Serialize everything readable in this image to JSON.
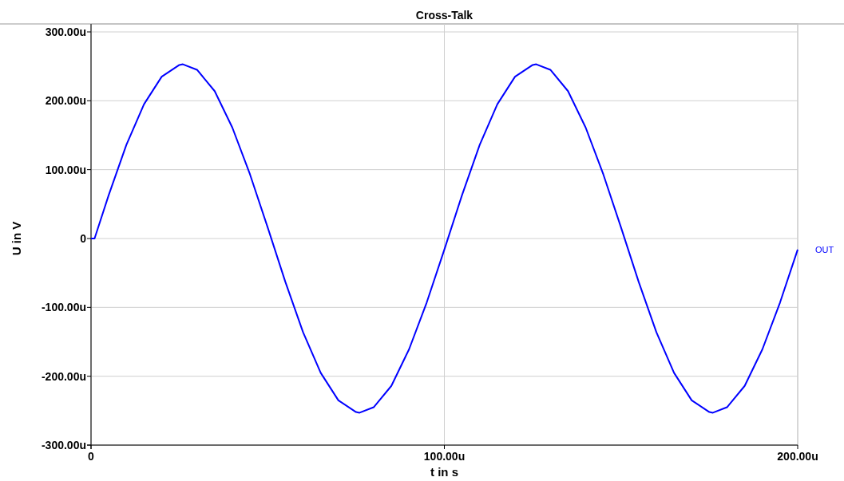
{
  "chart_data": {
    "type": "line",
    "title": "Cross-Talk",
    "xlabel": "t in s",
    "ylabel": "U in V",
    "x": [
      0,
      1,
      5,
      10,
      15,
      20,
      25,
      26,
      30,
      35,
      40,
      45,
      50,
      55,
      60,
      65,
      70,
      75,
      76,
      80,
      85,
      90,
      95,
      100,
      105,
      110,
      115,
      120,
      125,
      126,
      130,
      135,
      140,
      145,
      150,
      155,
      160,
      165,
      170,
      175,
      176,
      180,
      185,
      190,
      195,
      200
    ],
    "series": [
      {
        "name": "OUT",
        "color": "#0000ff",
        "values": [
          0,
          0,
          63,
          136,
          195,
          235,
          252,
          253,
          245,
          214,
          161,
          93,
          16,
          -63,
          -136,
          -195,
          -235,
          -252,
          -253,
          -245,
          -214,
          -161,
          -93,
          -16,
          63,
          136,
          195,
          235,
          252,
          253,
          245,
          214,
          161,
          93,
          16,
          -63,
          -136,
          -195,
          -235,
          -252,
          -253,
          -245,
          -214,
          -161,
          -93,
          -16
        ]
      }
    ],
    "xlim": [
      0,
      200
    ],
    "xticks": [
      0,
      {
        "value": 100,
        "label": "100.00u"
      },
      {
        "value": 200,
        "label": "200.00u"
      }
    ],
    "ylim": [
      -300,
      300
    ],
    "yticks": [
      {
        "value": -300,
        "label": "-300.00u"
      },
      {
        "value": -200,
        "label": "-200.00u"
      },
      {
        "value": -100,
        "label": "-100.00u"
      },
      0,
      {
        "value": 100,
        "label": "100.00u"
      },
      {
        "value": 200,
        "label": "200.00u"
      },
      {
        "value": 300,
        "label": "300.00u"
      }
    ],
    "grid": true,
    "legend": "right",
    "marker": "none",
    "line_style": "solid"
  }
}
